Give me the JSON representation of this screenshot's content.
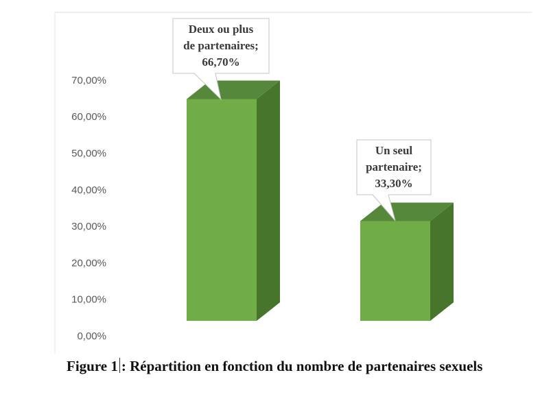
{
  "chart_data": {
    "type": "bar",
    "categories": [
      "Deux ou plus de partenaires",
      "Un seul partenaire"
    ],
    "values": [
      66.7,
      33.3
    ],
    "data_labels": [
      [
        "Deux ou plus",
        "de partenaires;",
        "66,70%"
      ],
      [
        "Un seul",
        "partenaire;",
        "33,30%"
      ]
    ],
    "y_ticks": [
      "0,00%",
      "10,00%",
      "20,00%",
      "30,00%",
      "40,00%",
      "50,00%",
      "60,00%",
      "70,00%"
    ],
    "ylim": [
      0,
      70
    ],
    "grid": false,
    "legend": "none",
    "bar_style": "3d-column",
    "colors": {
      "front": "#70ad47",
      "side": "#48752c",
      "top": "#55883a"
    }
  },
  "caption": {
    "prefix": "Figure 1",
    "text": ": Répartition en fonction du nombre de partenaires sexuels"
  }
}
